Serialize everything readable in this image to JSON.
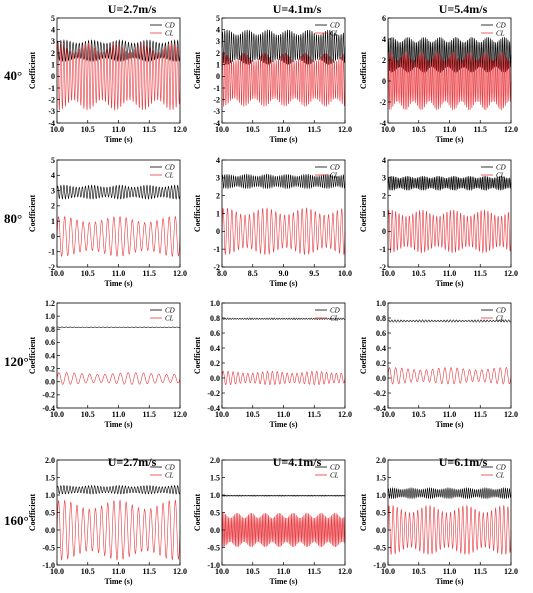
{
  "figure": {
    "column_titles_top": [
      "U=2.7m/s",
      "U=4.1m/s",
      "U=5.4m/s"
    ],
    "column_titles_bottom": [
      "U=2.7m/s",
      "U=4.1m/s",
      "U=6.1m/s"
    ],
    "row_labels": [
      "40°",
      "80°",
      "120°",
      "160°"
    ]
  },
  "chart_data": [
    {
      "type": "line",
      "xlabel": "Time (s)",
      "ylabel": "Coefficient",
      "xlim": [
        10,
        12
      ],
      "xticks": [
        10.0,
        10.5,
        11.0,
        11.5,
        12.0
      ],
      "ylim": [
        -4,
        5
      ],
      "yticks": [
        -4,
        -3,
        -2,
        -1,
        0,
        1,
        2,
        3,
        4,
        5
      ],
      "series": [
        {
          "name": "CD",
          "color": "#000000",
          "mean": 2.2,
          "amp": 0.9,
          "cycles": 40
        },
        {
          "name": "CL",
          "color": "#e8393f",
          "mean": 0.0,
          "amp": 2.9,
          "cycles": 40
        }
      ]
    },
    {
      "type": "line",
      "xlabel": "Time (s)",
      "ylabel": "Coefficient",
      "xlim": [
        10,
        12
      ],
      "xticks": [
        10.0,
        10.5,
        11.0,
        11.5,
        12.0
      ],
      "ylim": [
        -4,
        5
      ],
      "yticks": [
        -4,
        -3,
        -2,
        -1,
        0,
        1,
        2,
        3,
        4,
        5
      ],
      "series": [
        {
          "name": "CD",
          "color": "#000000",
          "mean": 2.5,
          "amp": 1.5,
          "cycles": 55
        },
        {
          "name": "CL",
          "color": "#e8393f",
          "mean": -0.3,
          "amp": 2.3,
          "cycles": 55
        }
      ]
    },
    {
      "type": "line",
      "xlabel": "Time (s)",
      "ylabel": "Coefficient",
      "xlim": [
        10,
        12
      ],
      "xticks": [
        10.0,
        10.5,
        11.0,
        11.5,
        12.0
      ],
      "ylim": [
        -4,
        6
      ],
      "yticks": [
        -4,
        -2,
        0,
        2,
        4,
        6
      ],
      "series": [
        {
          "name": "CD",
          "color": "#000000",
          "mean": 2.5,
          "amp": 1.7,
          "cycles": 70
        },
        {
          "name": "CL",
          "color": "#e8393f",
          "mean": 0.0,
          "amp": 2.8,
          "cycles": 70
        }
      ]
    },
    {
      "type": "line",
      "xlabel": "Time (s)",
      "ylabel": "Coefficient",
      "xlim": [
        10,
        12
      ],
      "xticks": [
        10.0,
        10.5,
        11.0,
        11.5,
        12.0
      ],
      "ylim": [
        -2,
        5
      ],
      "yticks": [
        -2,
        -1,
        0,
        1,
        2,
        3,
        4,
        5
      ],
      "series": [
        {
          "name": "CD",
          "color": "#000000",
          "mean": 2.9,
          "amp": 0.45,
          "cycles": 40
        },
        {
          "name": "CL",
          "color": "#e8393f",
          "mean": 0.0,
          "amp": 1.3,
          "cycles": 20
        }
      ]
    },
    {
      "type": "line",
      "xlabel": "Time (s)",
      "ylabel": "Coefficient",
      "xlim": [
        8,
        10
      ],
      "xticks": [
        8.0,
        8.5,
        9.0,
        9.5,
        10.0
      ],
      "ylim": [
        -2,
        4
      ],
      "yticks": [
        -2,
        -1,
        0,
        1,
        2,
        3,
        4
      ],
      "series": [
        {
          "name": "CD",
          "color": "#000000",
          "mean": 2.8,
          "amp": 0.4,
          "cycles": 56
        },
        {
          "name": "CL",
          "color": "#e8393f",
          "mean": 0.0,
          "amp": 1.3,
          "cycles": 28
        }
      ]
    },
    {
      "type": "line",
      "xlabel": "Time (s)",
      "ylabel": "Coefficient",
      "xlim": [
        10,
        12
      ],
      "xticks": [
        10.0,
        10.5,
        11.0,
        11.5,
        12.0
      ],
      "ylim": [
        -2,
        4
      ],
      "yticks": [
        -2,
        -1,
        0,
        1,
        2,
        3,
        4
      ],
      "series": [
        {
          "name": "CD",
          "color": "#000000",
          "mean": 2.7,
          "amp": 0.4,
          "cycles": 72
        },
        {
          "name": "CL",
          "color": "#e8393f",
          "mean": 0.0,
          "amp": 1.2,
          "cycles": 36
        }
      ]
    },
    {
      "type": "line",
      "xlabel": "Time (s)",
      "ylabel": "Coefficient",
      "xlim": [
        10,
        12
      ],
      "xticks": [
        10.0,
        10.5,
        11.0,
        11.5,
        12.0
      ],
      "ylim": [
        -0.4,
        1.2
      ],
      "yticks": [
        -0.4,
        -0.2,
        0.0,
        0.2,
        0.4,
        0.6,
        0.8,
        1.0,
        1.2
      ],
      "series": [
        {
          "name": "CD",
          "color": "#000000",
          "mean": 0.83,
          "amp": 0.005,
          "cycles": 30
        },
        {
          "name": "CL",
          "color": "#e8393f",
          "mean": 0.05,
          "amp": 0.09,
          "cycles": 16
        }
      ]
    },
    {
      "type": "line",
      "xlabel": "Time (s)",
      "ylabel": "Coefficient",
      "xlim": [
        10,
        12
      ],
      "xticks": [
        10.0,
        10.5,
        11.0,
        11.5,
        12.0
      ],
      "ylim": [
        -0.4,
        1.0
      ],
      "yticks": [
        -0.4,
        -0.2,
        0.0,
        0.2,
        0.4,
        0.6,
        0.8,
        1.0
      ],
      "series": [
        {
          "name": "CD",
          "color": "#000000",
          "mean": 0.79,
          "amp": 0.01,
          "cycles": 50
        },
        {
          "name": "CL",
          "color": "#e8393f",
          "mean": 0.0,
          "amp": 0.09,
          "cycles": 25
        }
      ]
    },
    {
      "type": "line",
      "xlabel": "Time (s)",
      "ylabel": "Coefficient",
      "xlim": [
        10,
        12
      ],
      "xticks": [
        10.0,
        10.5,
        11.0,
        11.5,
        12.0
      ],
      "ylim": [
        -0.4,
        1.0
      ],
      "yticks": [
        -0.4,
        -0.2,
        0.0,
        0.2,
        0.4,
        0.6,
        0.8,
        1.0
      ],
      "series": [
        {
          "name": "CD",
          "color": "#000000",
          "mean": 0.76,
          "amp": 0.015,
          "cycles": 40
        },
        {
          "name": "CL",
          "color": "#e8393f",
          "mean": 0.03,
          "amp": 0.11,
          "cycles": 20
        }
      ]
    },
    {
      "type": "line",
      "xlabel": "Time (s)",
      "ylabel": "Coefficient",
      "xlim": [
        10,
        12
      ],
      "xticks": [
        10.0,
        10.5,
        11.0,
        11.5,
        12.0
      ],
      "ylim": [
        -1.0,
        2.0
      ],
      "yticks": [
        -1.0,
        -0.5,
        0.0,
        0.5,
        1.0,
        1.5,
        2.0
      ],
      "series": [
        {
          "name": "CD",
          "color": "#000000",
          "mean": 1.15,
          "amp": 0.12,
          "cycles": 40
        },
        {
          "name": "CL",
          "color": "#e8393f",
          "mean": 0.0,
          "amp": 0.85,
          "cycles": 20
        }
      ]
    },
    {
      "type": "line",
      "xlabel": "Time (s)",
      "ylabel": "Coefficient",
      "xlim": [
        10,
        12
      ],
      "xticks": [
        10.0,
        10.5,
        11.0,
        11.5,
        12.0
      ],
      "ylim": [
        -1.0,
        2.0
      ],
      "yticks": [
        -1.0,
        -0.5,
        0.0,
        0.5,
        1.0,
        1.5,
        2.0
      ],
      "series": [
        {
          "name": "CD",
          "color": "#000000",
          "mean": 0.98,
          "amp": 0.015,
          "cycles": 80
        },
        {
          "name": "CL",
          "color": "#e8393f",
          "mean": 0.0,
          "amp": 0.5,
          "cycles": 80
        }
      ]
    },
    {
      "type": "line",
      "xlabel": "Time (s)",
      "ylabel": "Coefficient",
      "xlim": [
        10,
        12
      ],
      "xticks": [
        10.0,
        10.5,
        11.0,
        11.5,
        12.0
      ],
      "ylim": [
        -1.0,
        2.0
      ],
      "yticks": [
        -1.0,
        -0.5,
        0.0,
        0.5,
        1.0,
        1.5,
        2.0
      ],
      "series": [
        {
          "name": "CD",
          "color": "#000000",
          "mean": 1.05,
          "amp": 0.15,
          "cycles": 60
        },
        {
          "name": "CL",
          "color": "#e8393f",
          "mean": 0.0,
          "amp": 0.7,
          "cycles": 30
        }
      ]
    }
  ]
}
